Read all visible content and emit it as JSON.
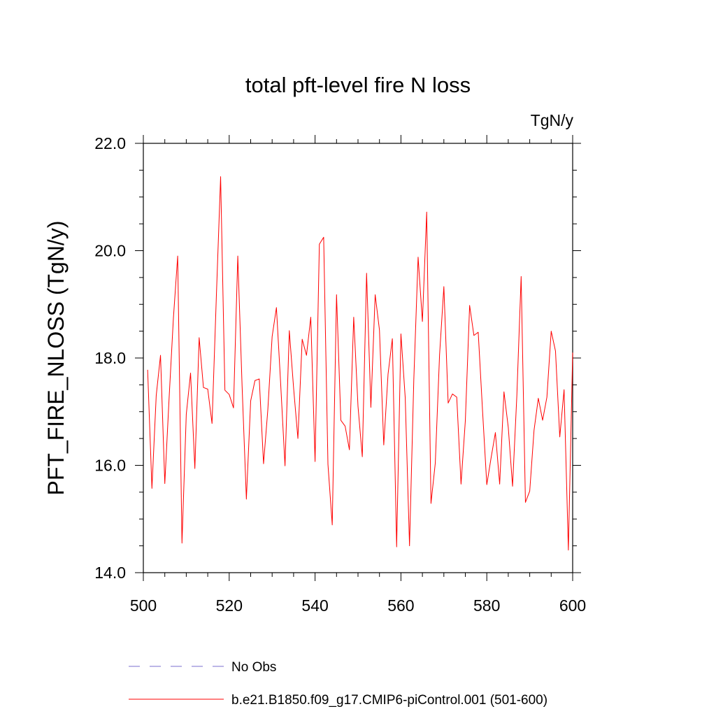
{
  "chart_data": {
    "type": "line",
    "title": "total pft-level fire N loss",
    "units": "TgN/y",
    "xlabel": "",
    "ylabel": "PFT_FIRE_NLOSS  (TgN/y)",
    "xlim": [
      500,
      600
    ],
    "ylim": [
      14.0,
      22.0
    ],
    "xticks": [
      500,
      520,
      540,
      560,
      580,
      600
    ],
    "yticks": [
      14.0,
      16.0,
      18.0,
      20.0,
      22.0
    ],
    "ytick_labels": [
      "14.0",
      "16.0",
      "18.0",
      "20.0",
      "22.0"
    ],
    "grid": false,
    "legend_position": "bottom",
    "colors": {
      "model": "#ff0000",
      "obs": "#7a6fcf",
      "axis": "#000000"
    },
    "legend": [
      {
        "label": "No Obs",
        "style": "dashed",
        "color": "#7a6fcf"
      },
      {
        "label": "b.e21.B1850.f09_g17.CMIP6-piControl.001 (501-600)",
        "style": "solid",
        "color": "#ff0000"
      }
    ],
    "series": [
      {
        "name": "b.e21.B1850.f09_g17.CMIP6-piControl.001 (501-600)",
        "x": [
          501,
          502,
          503,
          504,
          505,
          506,
          507,
          508,
          509,
          510,
          511,
          512,
          513,
          514,
          515,
          516,
          517,
          518,
          519,
          520,
          521,
          522,
          523,
          524,
          525,
          526,
          527,
          528,
          529,
          530,
          531,
          532,
          533,
          534,
          535,
          536,
          537,
          538,
          539,
          540,
          541,
          542,
          543,
          544,
          545,
          546,
          547,
          548,
          549,
          550,
          551,
          552,
          553,
          554,
          555,
          556,
          557,
          558,
          559,
          560,
          561,
          562,
          563,
          564,
          565,
          566,
          567,
          568,
          569,
          570,
          571,
          572,
          573,
          574,
          575,
          576,
          577,
          578,
          579,
          580,
          581,
          582,
          583,
          584,
          585,
          586,
          587,
          588,
          589,
          590,
          591,
          592,
          593,
          594,
          595,
          596,
          597,
          598,
          599,
          600
        ],
        "values": [
          17.78,
          15.57,
          17.3,
          18.05,
          15.66,
          17.25,
          18.74,
          19.9,
          14.55,
          16.95,
          17.72,
          15.94,
          18.38,
          17.45,
          17.42,
          16.78,
          19.13,
          21.38,
          17.4,
          17.32,
          17.07,
          19.9,
          17.48,
          15.37,
          17.2,
          17.58,
          17.61,
          16.03,
          17.04,
          18.4,
          18.94,
          17.5,
          15.99,
          18.51,
          17.44,
          16.5,
          18.35,
          18.05,
          18.76,
          16.07,
          20.12,
          20.25,
          16.02,
          14.89,
          19.18,
          16.84,
          16.73,
          16.29,
          18.76,
          17.1,
          16.16,
          19.58,
          17.08,
          19.18,
          18.52,
          16.38,
          17.7,
          18.36,
          14.48,
          18.45,
          17.26,
          14.5,
          17.6,
          19.88,
          18.68,
          20.72,
          15.29,
          16.04,
          18.06,
          19.33,
          17.16,
          17.33,
          17.27,
          15.65,
          16.83,
          18.98,
          18.42,
          18.48,
          17.03,
          15.64,
          16.14,
          16.61,
          15.65,
          17.37,
          16.71,
          15.61,
          17.3,
          19.52,
          15.31,
          15.52,
          16.65,
          17.25,
          16.84,
          17.27,
          18.5,
          18.13,
          16.53,
          17.41,
          14.42,
          18.1
        ]
      }
    ]
  }
}
